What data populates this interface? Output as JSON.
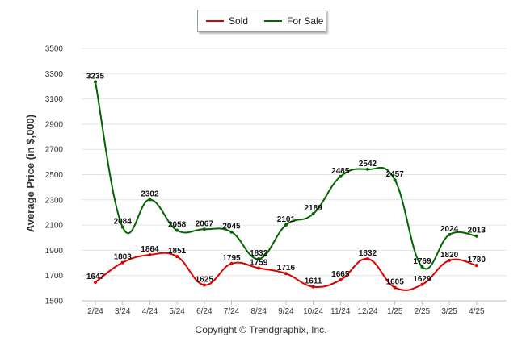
{
  "legend": [
    {
      "label": "Sold",
      "color": "#dd0000"
    },
    {
      "label": "For Sale",
      "color": "#006600"
    }
  ],
  "credit": "Copyright © Trendgraphix, Inc.",
  "chart_data": {
    "type": "line",
    "xlabel": "",
    "ylabel": "Average Price (in $,000)",
    "ylim": [
      1500,
      3500
    ],
    "yticks": [
      1500,
      1700,
      1900,
      2100,
      2300,
      2500,
      2700,
      2900,
      3100,
      3300,
      3500
    ],
    "categories": [
      "2/24",
      "3/24",
      "4/24",
      "5/24",
      "6/24",
      "7/24",
      "8/24",
      "9/24",
      "10/24",
      "11/24",
      "12/24",
      "1/25",
      "2/25",
      "3/25",
      "4/25"
    ],
    "grid": true,
    "legend_position": "top-center",
    "series": [
      {
        "name": "Sold",
        "color": "#dd0000",
        "values": [
          1647,
          1803,
          1864,
          1851,
          1625,
          1795,
          1759,
          1716,
          1611,
          1665,
          1832,
          1605,
          1629,
          1820,
          1780
        ]
      },
      {
        "name": "For Sale",
        "color": "#006600",
        "values": [
          3235,
          2084,
          2302,
          2058,
          2067,
          2045,
          1832,
          2101,
          2189,
          2485,
          2542,
          2457,
          1769,
          2024,
          2013
        ]
      }
    ]
  }
}
